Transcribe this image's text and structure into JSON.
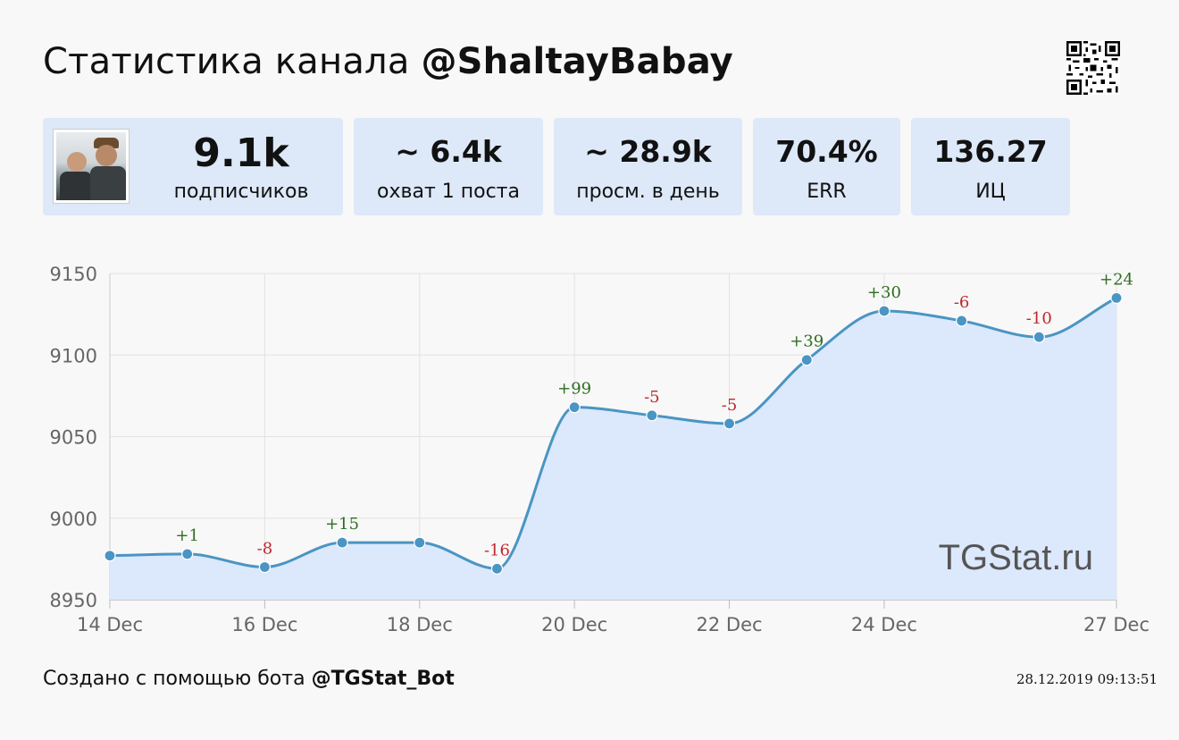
{
  "header": {
    "title_prefix": "Статистика канала ",
    "channel_handle": "@ShaltayBabay"
  },
  "icons": {
    "qr": "qr-code-icon"
  },
  "stats": {
    "subscribers": {
      "value": "9.1k",
      "label": "подписчиков"
    },
    "reach": {
      "value": "~ 6.4k",
      "label": "охват 1 поста"
    },
    "daily_views": {
      "value": "~ 28.9k",
      "label": "просм. в день"
    },
    "err": {
      "value": "70.4%",
      "label": "ERR"
    },
    "citation": {
      "value": "136.27",
      "label": "ИЦ"
    }
  },
  "footer": {
    "created_text": "Создано с помощью бота ",
    "bot_handle": "@TGStat_Bot",
    "timestamp": "28.12.2019 09:13:51"
  },
  "colors": {
    "card_bg": "#dde8f8",
    "line": "#4a95c3",
    "area": "#dce8fb",
    "positive": "#2e6e1f",
    "negative": "#c0272d"
  },
  "chart_data": {
    "type": "area",
    "watermark": "TGStat.ru",
    "x": [
      "14 Dec",
      "15 Dec",
      "16 Dec",
      "17 Dec",
      "18 Dec",
      "19 Dec",
      "20 Dec",
      "21 Dec",
      "22 Dec",
      "23 Dec",
      "24 Dec",
      "25 Dec",
      "26 Dec",
      "27 Dec"
    ],
    "x_tick_labels": [
      "14 Dec",
      "16 Dec",
      "18 Dec",
      "20 Dec",
      "22 Dec",
      "24 Dec",
      "27 Dec"
    ],
    "x_tick_indices": [
      0,
      2,
      4,
      6,
      8,
      10,
      13
    ],
    "values": [
      8977,
      8978,
      8970,
      8985,
      8985,
      8969,
      9068,
      9063,
      9058,
      9097,
      9127,
      9121,
      9111,
      9135
    ],
    "data_labels": [
      "",
      "+1",
      "-8",
      "+15",
      "",
      "-16",
      "+99",
      "-5",
      "-5",
      "+39",
      "+30",
      "-6",
      "-10",
      "+24"
    ],
    "y_ticks": [
      8950,
      9000,
      9050,
      9100,
      9150
    ],
    "ylim": [
      8950,
      9150
    ],
    "grid": true,
    "legend": "none"
  }
}
